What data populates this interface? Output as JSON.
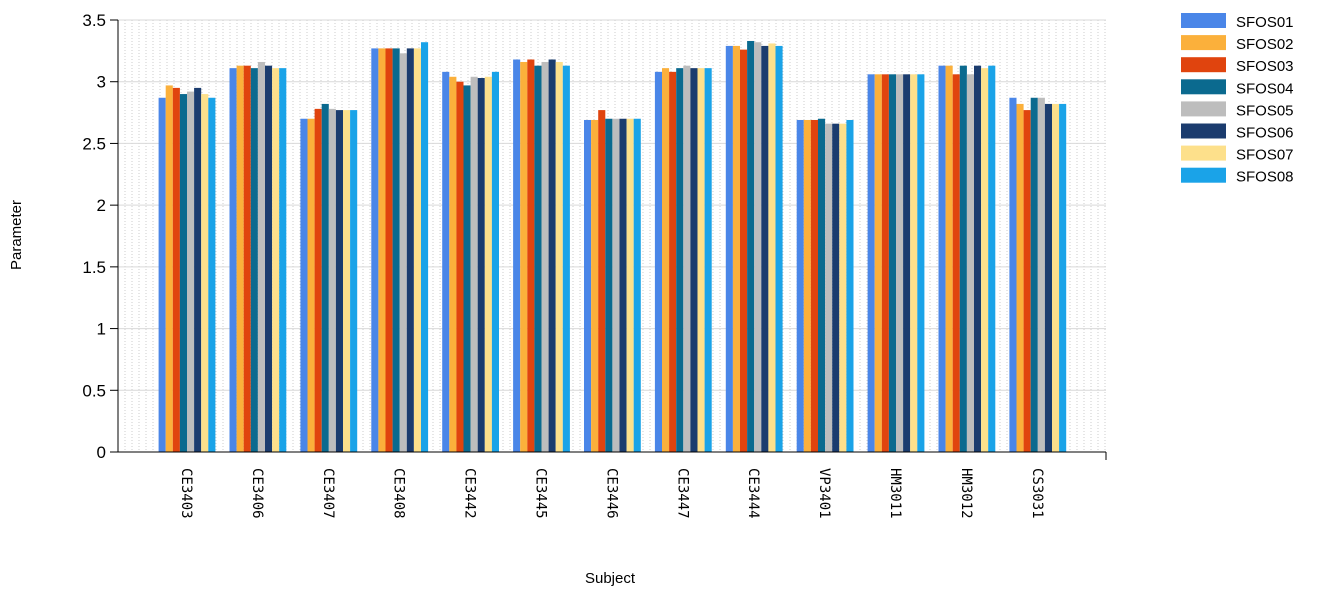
{
  "chart_data": {
    "type": "bar",
    "title": "",
    "xlabel": "Subject",
    "ylabel": "Parameter",
    "ylim": [
      0,
      3.5
    ],
    "yticks": [
      "0",
      "0.5",
      "1",
      "1.5",
      "2",
      "2.5",
      "3",
      "3.5"
    ],
    "grid": true,
    "legend_position": "top-right",
    "categories": [
      "CE3403",
      "CE3406",
      "CE3407",
      "CE3408",
      "CE3442",
      "CE3445",
      "CE3446",
      "CE3447",
      "CE3444",
      "VP3401",
      "HM3011",
      "HM3012",
      "CS3031"
    ],
    "series": [
      {
        "name": "SFOS01",
        "color": "#4a86e8",
        "values": [
          2.87,
          3.11,
          2.7,
          3.27,
          3.08,
          3.18,
          2.69,
          3.08,
          3.29,
          2.69,
          3.06,
          3.13,
          2.87
        ]
      },
      {
        "name": "SFOS02",
        "color": "#fbb03b",
        "values": [
          2.97,
          3.13,
          2.7,
          3.27,
          3.04,
          3.16,
          2.69,
          3.11,
          3.29,
          2.69,
          3.06,
          3.13,
          2.82
        ]
      },
      {
        "name": "SFOS03",
        "color": "#e0440e",
        "values": [
          2.95,
          3.13,
          2.78,
          3.27,
          3.0,
          3.18,
          2.77,
          3.08,
          3.26,
          2.69,
          3.06,
          3.06,
          2.77
        ]
      },
      {
        "name": "SFOS04",
        "color": "#0b6a8f",
        "values": [
          2.9,
          3.11,
          2.82,
          3.27,
          2.97,
          3.13,
          2.7,
          3.11,
          3.33,
          2.7,
          3.06,
          3.13,
          2.87
        ]
      },
      {
        "name": "SFOS05",
        "color": "#bdbdbd",
        "values": [
          2.92,
          3.16,
          2.78,
          3.23,
          3.04,
          3.16,
          2.7,
          3.13,
          3.32,
          2.66,
          3.06,
          3.06,
          2.87
        ]
      },
      {
        "name": "SFOS06",
        "color": "#1b3c6e",
        "values": [
          2.95,
          3.13,
          2.77,
          3.27,
          3.03,
          3.18,
          2.7,
          3.11,
          3.29,
          2.66,
          3.06,
          3.13,
          2.82
        ]
      },
      {
        "name": "SFOS07",
        "color": "#fde08b",
        "values": [
          2.9,
          3.11,
          2.77,
          3.27,
          3.04,
          3.16,
          2.7,
          3.11,
          3.31,
          2.66,
          3.06,
          3.11,
          2.82
        ]
      },
      {
        "name": "SFOS08",
        "color": "#1aa3e8",
        "values": [
          2.87,
          3.11,
          2.77,
          3.32,
          3.08,
          3.13,
          2.7,
          3.11,
          3.29,
          2.69,
          3.06,
          3.13,
          2.82
        ]
      }
    ]
  }
}
